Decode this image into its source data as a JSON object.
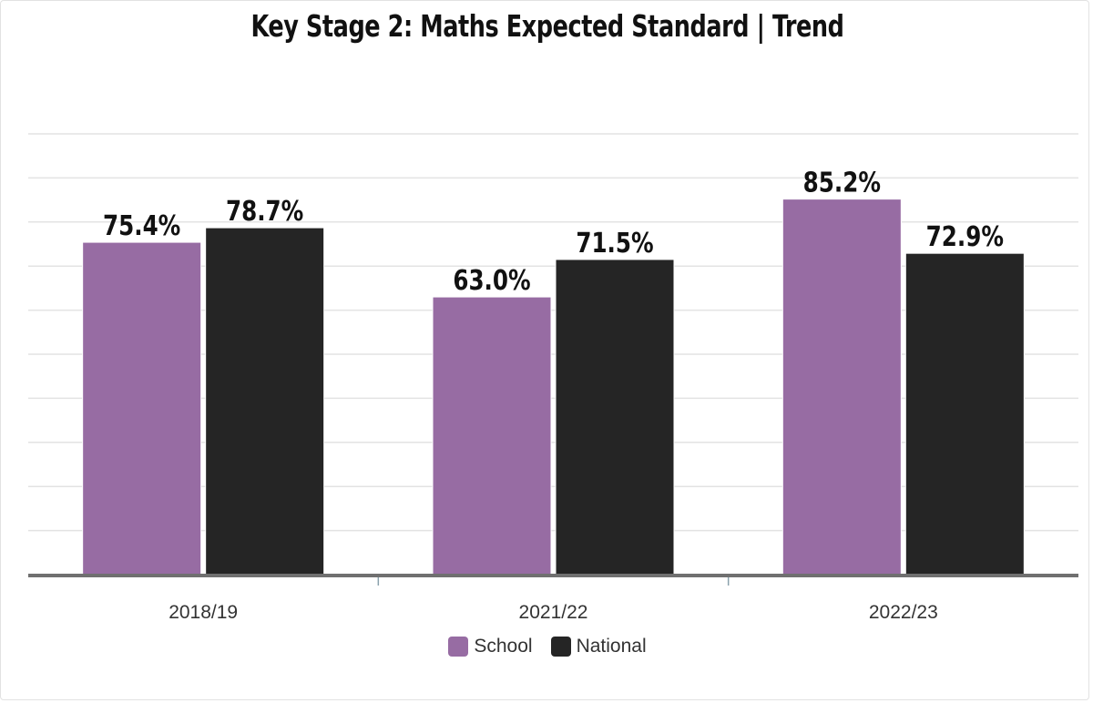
{
  "chart_data": {
    "type": "bar",
    "title": "Key Stage 2: Maths Expected Standard | Trend",
    "categories": [
      "2018/19",
      "2021/22",
      "2022/23"
    ],
    "series": [
      {
        "name": "School",
        "values": [
          75.4,
          63.0,
          85.2
        ],
        "labels": [
          "75.4%",
          "63.0%",
          "85.2%"
        ],
        "color": "#976ca3"
      },
      {
        "name": "National",
        "values": [
          78.7,
          71.5,
          72.9
        ],
        "labels": [
          "78.7%",
          "71.5%",
          "72.9%"
        ],
        "color": "#252525"
      }
    ],
    "ylim": [
      0,
      100
    ],
    "grid": true,
    "legend": "bottom-center",
    "xlabel": "",
    "ylabel": ""
  }
}
